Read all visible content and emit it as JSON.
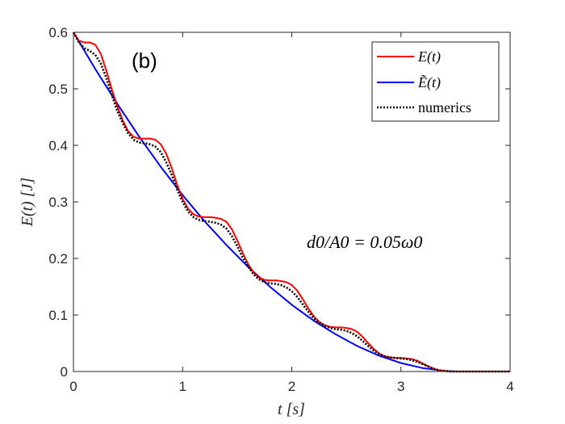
{
  "chart_data": {
    "type": "line",
    "title": "",
    "panel_label": "(b)",
    "xlabel": "t [s]",
    "ylabel": "E(t) [J]",
    "xlim": [
      0,
      4
    ],
    "ylim": [
      0,
      0.6
    ],
    "xticks": [
      0,
      1,
      2,
      3,
      4
    ],
    "yticks": [
      0,
      0.1,
      0.2,
      0.3,
      0.4,
      0.5,
      0.6
    ],
    "xtick_labels": [
      "0",
      "1",
      "2",
      "3",
      "4"
    ],
    "ytick_labels": [
      "0",
      "0.1",
      "0.2",
      "0.3",
      "0.4",
      "0.5",
      "0.6"
    ],
    "annotation": "d0/A0 = 0.05ω0",
    "legend_position": "top-right",
    "series": [
      {
        "name": "E(t)",
        "legend_label": "E(t)",
        "color": "#ff0000",
        "style": "solid",
        "x": [
          0,
          0.05,
          0.1,
          0.15,
          0.2,
          0.25,
          0.3,
          0.35,
          0.4,
          0.45,
          0.5,
          0.55,
          0.6,
          0.65,
          0.7,
          0.75,
          0.8,
          0.85,
          0.9,
          0.95,
          1.0,
          1.05,
          1.1,
          1.15,
          1.2,
          1.25,
          1.3,
          1.35,
          1.4,
          1.45,
          1.5,
          1.55,
          1.6,
          1.65,
          1.7,
          1.75,
          1.8,
          1.85,
          1.9,
          1.95,
          2.0,
          2.05,
          2.1,
          2.15,
          2.2,
          2.25,
          2.3,
          2.35,
          2.4,
          2.45,
          2.5,
          2.55,
          2.6,
          2.65,
          2.7,
          2.75,
          2.8,
          2.85,
          2.9,
          2.95,
          3.0,
          3.05,
          3.1,
          3.15,
          3.2,
          3.25,
          3.3,
          3.35,
          3.4,
          3.45,
          3.5,
          3.55,
          3.6,
          3.7,
          3.8,
          3.9,
          4.0
        ],
        "values": [
          0.6,
          0.585,
          0.582,
          0.582,
          0.578,
          0.562,
          0.533,
          0.5,
          0.47,
          0.445,
          0.425,
          0.415,
          0.412,
          0.412,
          0.412,
          0.41,
          0.402,
          0.385,
          0.36,
          0.33,
          0.305,
          0.288,
          0.278,
          0.274,
          0.273,
          0.273,
          0.272,
          0.27,
          0.265,
          0.252,
          0.232,
          0.21,
          0.19,
          0.175,
          0.166,
          0.162,
          0.161,
          0.161,
          0.16,
          0.158,
          0.153,
          0.143,
          0.128,
          0.112,
          0.098,
          0.088,
          0.082,
          0.079,
          0.078,
          0.078,
          0.077,
          0.075,
          0.07,
          0.061,
          0.05,
          0.04,
          0.032,
          0.027,
          0.025,
          0.024,
          0.024,
          0.023,
          0.022,
          0.019,
          0.014,
          0.009,
          0.005,
          0.002,
          0.001,
          0,
          0,
          0,
          0,
          0,
          0,
          0,
          0
        ]
      },
      {
        "name": "Etilde(t)",
        "legend_label": "Ẽ(t)",
        "color": "#0000ff",
        "style": "solid",
        "x": [
          0,
          0.2,
          0.4,
          0.6,
          0.8,
          1.0,
          1.2,
          1.4,
          1.6,
          1.8,
          2.0,
          2.2,
          2.4,
          2.6,
          2.8,
          3.0,
          3.2,
          3.4,
          3.5,
          3.55,
          3.6,
          3.8,
          4.0
        ],
        "values": [
          0.6,
          0.535,
          0.474,
          0.416,
          0.362,
          0.312,
          0.266,
          0.224,
          0.185,
          0.15,
          0.118,
          0.09,
          0.066,
          0.045,
          0.028,
          0.015,
          0.006,
          0.001,
          0.0002,
          0,
          0,
          0,
          0
        ]
      },
      {
        "name": "numerics",
        "legend_label": "numerics",
        "color": "#000000",
        "style": "dotted",
        "x": [
          0,
          0.05,
          0.1,
          0.15,
          0.2,
          0.25,
          0.3,
          0.35,
          0.4,
          0.45,
          0.5,
          0.55,
          0.6,
          0.65,
          0.7,
          0.75,
          0.8,
          0.85,
          0.9,
          0.95,
          1.0,
          1.05,
          1.1,
          1.15,
          1.2,
          1.25,
          1.3,
          1.35,
          1.4,
          1.45,
          1.5,
          1.55,
          1.6,
          1.65,
          1.7,
          1.75,
          1.8,
          1.85,
          1.9,
          1.95,
          2.0,
          2.05,
          2.1,
          2.15,
          2.2,
          2.25,
          2.3,
          2.35,
          2.4,
          2.45,
          2.5,
          2.55,
          2.6,
          2.65,
          2.7,
          2.75,
          2.8,
          2.85,
          2.9,
          2.95,
          3.0,
          3.05,
          3.1,
          3.15,
          3.2,
          3.25,
          3.3,
          3.35,
          3.4,
          3.45,
          3.5,
          3.55,
          3.6,
          3.7,
          3.8,
          3.9,
          4.0
        ],
        "values": [
          0.6,
          0.582,
          0.572,
          0.567,
          0.56,
          0.545,
          0.52,
          0.49,
          0.462,
          0.44,
          0.422,
          0.41,
          0.405,
          0.404,
          0.402,
          0.398,
          0.388,
          0.37,
          0.348,
          0.322,
          0.3,
          0.283,
          0.273,
          0.268,
          0.266,
          0.265,
          0.263,
          0.26,
          0.253,
          0.24,
          0.222,
          0.202,
          0.186,
          0.172,
          0.163,
          0.158,
          0.156,
          0.155,
          0.153,
          0.149,
          0.142,
          0.132,
          0.119,
          0.106,
          0.094,
          0.086,
          0.081,
          0.077,
          0.075,
          0.074,
          0.072,
          0.068,
          0.062,
          0.054,
          0.045,
          0.037,
          0.031,
          0.027,
          0.025,
          0.024,
          0.023,
          0.022,
          0.02,
          0.017,
          0.013,
          0.009,
          0.005,
          0.002,
          0.001,
          0,
          0,
          0,
          0,
          0,
          0,
          0,
          0
        ]
      }
    ]
  }
}
